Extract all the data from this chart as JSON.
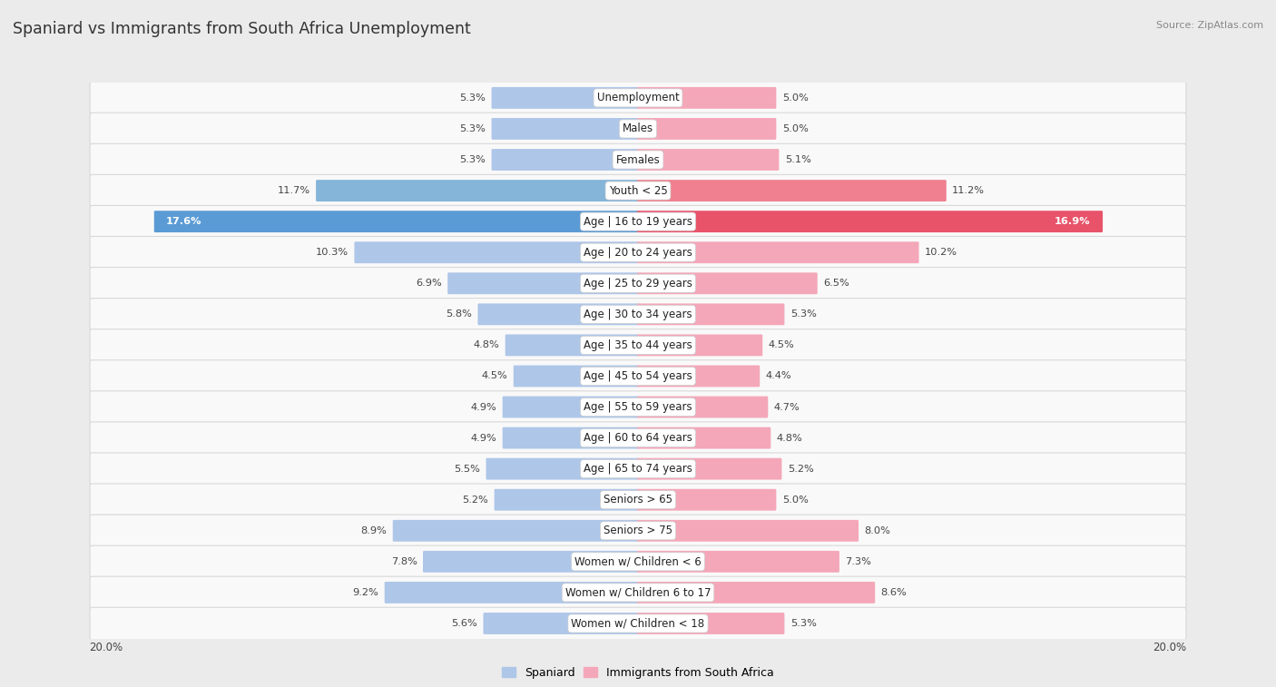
{
  "title": "Spaniard vs Immigrants from South Africa Unemployment",
  "source": "Source: ZipAtlas.com",
  "categories": [
    "Unemployment",
    "Males",
    "Females",
    "Youth < 25",
    "Age | 16 to 19 years",
    "Age | 20 to 24 years",
    "Age | 25 to 29 years",
    "Age | 30 to 34 years",
    "Age | 35 to 44 years",
    "Age | 45 to 54 years",
    "Age | 55 to 59 years",
    "Age | 60 to 64 years",
    "Age | 65 to 74 years",
    "Seniors > 65",
    "Seniors > 75",
    "Women w/ Children < 6",
    "Women w/ Children 6 to 17",
    "Women w/ Children < 18"
  ],
  "spaniard_values": [
    5.3,
    5.3,
    5.3,
    11.7,
    17.6,
    10.3,
    6.9,
    5.8,
    4.8,
    4.5,
    4.9,
    4.9,
    5.5,
    5.2,
    8.9,
    7.8,
    9.2,
    5.6
  ],
  "immigrant_values": [
    5.0,
    5.0,
    5.1,
    11.2,
    16.9,
    10.2,
    6.5,
    5.3,
    4.5,
    4.4,
    4.7,
    4.8,
    5.2,
    5.0,
    8.0,
    7.3,
    8.6,
    5.3
  ],
  "spaniard_color": "#aec6e8",
  "immigrant_color": "#f4a7b9",
  "highlight_spaniard_color": "#5b9bd5",
  "highlight_immigrant_color": "#e8536a",
  "highlight_youth_spaniard": "#85b5d9",
  "highlight_youth_immigrant": "#f08090",
  "axis_limit": 20.0,
  "legend_label_spaniard": "Spaniard",
  "legend_label_immigrant": "Immigrants from South Africa",
  "background_color": "#ebebeb",
  "row_bg_color": "#f9f9f9"
}
